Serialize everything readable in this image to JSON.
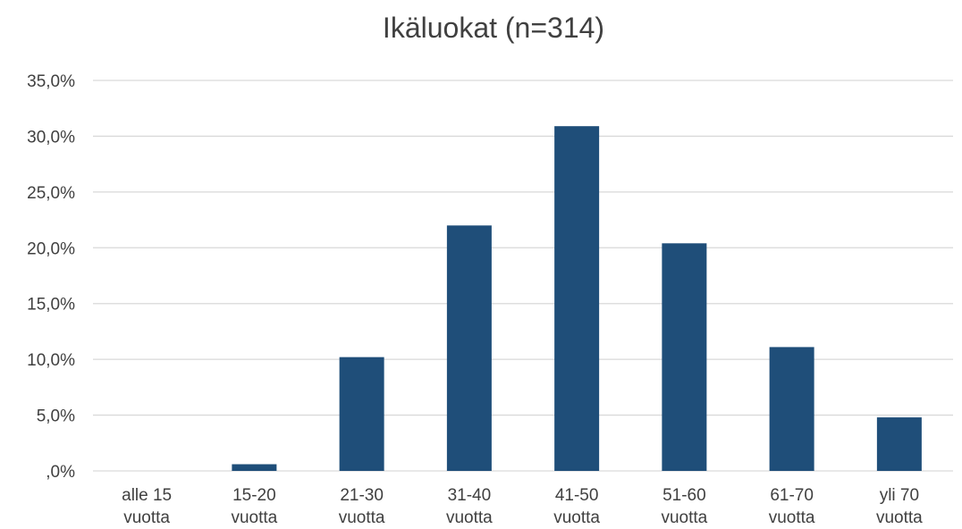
{
  "chart_data": {
    "type": "bar",
    "title": "Ikäluokat (n=314)",
    "xlabel": "",
    "ylabel": "",
    "categories": [
      [
        "alle 15",
        "vuotta"
      ],
      [
        "15-20",
        "vuotta"
      ],
      [
        "21-30",
        "vuotta"
      ],
      [
        "31-40",
        "vuotta"
      ],
      [
        "41-50",
        "vuotta"
      ],
      [
        "51-60",
        "vuotta"
      ],
      [
        "61-70",
        "vuotta"
      ],
      [
        "yli 70",
        "vuotta"
      ]
    ],
    "values": [
      0.0,
      0.6,
      10.2,
      22.0,
      30.9,
      20.4,
      11.1,
      4.8
    ],
    "ylim": [
      0,
      35
    ],
    "yticks": [
      0,
      5,
      10,
      15,
      20,
      25,
      30,
      35
    ],
    "ytick_labels": [
      ",0%",
      "5,0%",
      "10,0%",
      "15,0%",
      "20,0%",
      "25,0%",
      "30,0%",
      "35,0%"
    ],
    "grid": true,
    "legend": "none",
    "colors": {
      "bar": "#1f4e79",
      "grid": "#d9d9d9",
      "text": "#404040"
    }
  }
}
